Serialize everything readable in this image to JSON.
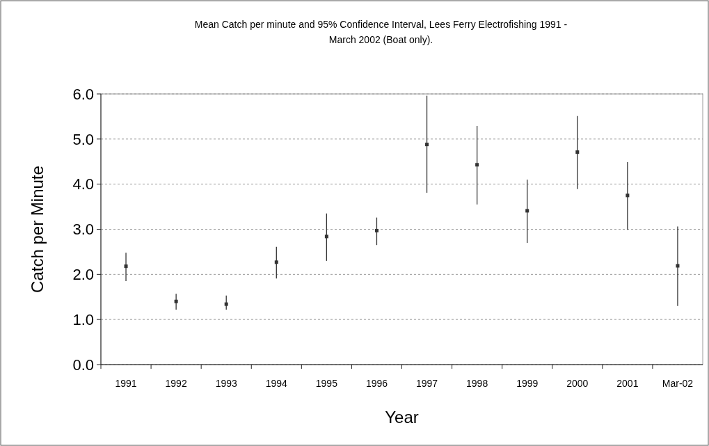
{
  "chart_data": {
    "type": "scatter",
    "title": "Mean Catch per minute and 95% Confidence Interval, Lees Ferry Electrofishing 1991 -\nMarch 2002 (Boat only).",
    "xlabel": "Year",
    "ylabel": "Catch per Minute",
    "categories": [
      "1991",
      "1992",
      "1993",
      "1994",
      "1995",
      "1996",
      "1997",
      "1998",
      "1999",
      "2000",
      "2001",
      "Mar-02"
    ],
    "values": [
      2.18,
      1.4,
      1.34,
      2.27,
      2.84,
      2.97,
      4.88,
      4.43,
      3.41,
      4.71,
      3.75,
      2.19
    ],
    "errors": [
      [
        1.85,
        2.48
      ],
      [
        1.22,
        1.57
      ],
      [
        1.22,
        1.53
      ],
      [
        1.91,
        2.61
      ],
      [
        2.3,
        3.35
      ],
      [
        2.65,
        3.26
      ],
      [
        3.81,
        5.96
      ],
      [
        3.55,
        5.29
      ],
      [
        2.7,
        4.1
      ],
      [
        3.89,
        5.51
      ],
      [
        2.99,
        4.49
      ],
      [
        1.3,
        3.06
      ]
    ],
    "color": "#333333",
    "marker": "square",
    "grid": "y",
    "ylim": [
      0,
      6
    ],
    "yticks": [
      {
        "value": 0,
        "label": "0.0"
      },
      {
        "value": 1,
        "label": "1.0"
      },
      {
        "value": 2,
        "label": "2.0"
      },
      {
        "value": 3,
        "label": "3.0"
      },
      {
        "value": 4,
        "label": "4.0"
      },
      {
        "value": 5,
        "label": "5.0"
      },
      {
        "value": 6,
        "label": "6.0"
      }
    ]
  }
}
